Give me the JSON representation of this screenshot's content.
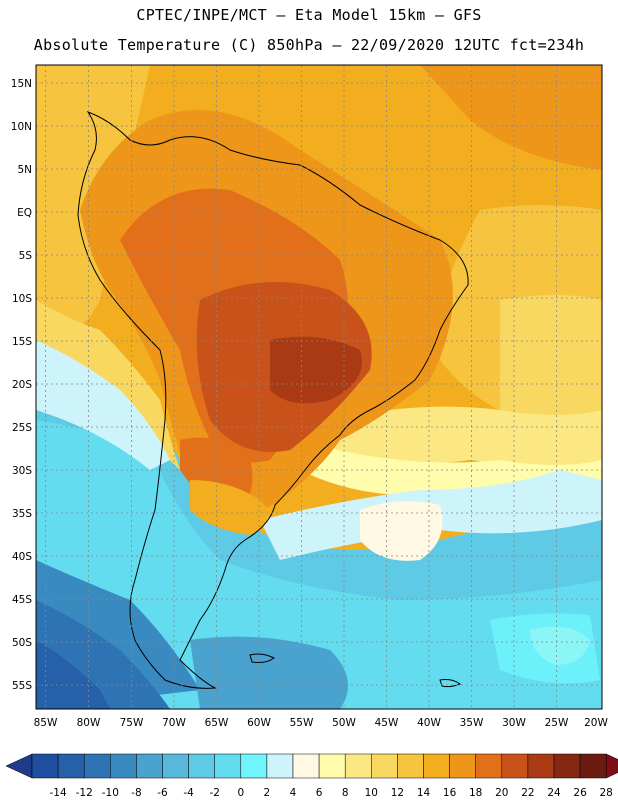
{
  "header": {
    "line1": "CPTEC/INPE/MCT –  Eta Model 15km – GFS",
    "line2": "Absolute Temperature (C) 850hPa – 22/09/2020 12UTC fct=234h"
  },
  "map": {
    "lat_labels": [
      "15N",
      "10N",
      "5N",
      "EQ",
      "5S",
      "10S",
      "15S",
      "20S",
      "25S",
      "30S",
      "35S",
      "40S",
      "45S",
      "50S",
      "55S"
    ],
    "lon_labels": [
      "85W",
      "80W",
      "75W",
      "70W",
      "65W",
      "60W",
      "55W",
      "50W",
      "45W",
      "40W",
      "35W",
      "30W",
      "25W",
      "20W"
    ]
  },
  "colorbar": {
    "ticks": [
      "-14",
      "-12",
      "-10",
      "-8",
      "-6",
      "-4",
      "-2",
      "0",
      "2",
      "4",
      "6",
      "8",
      "10",
      "12",
      "14",
      "16",
      "18",
      "20",
      "22",
      "24",
      "26",
      "28"
    ],
    "colors": [
      "#1f4ea0",
      "#2560a8",
      "#2e74b4",
      "#3a8ac2",
      "#4aa2cf",
      "#58b8dc",
      "#5fcae6",
      "#62dcee",
      "#6ff5fb",
      "#cdf3fb",
      "#fff8e3",
      "#fffcab",
      "#fbe882",
      "#f8d860",
      "#f6c43e",
      "#f2ae1e",
      "#ee961a",
      "#e2701a",
      "#c9521a",
      "#aa3a13",
      "#852712",
      "#6c1b10"
    ],
    "min_color": "#1e3c8a",
    "max_color": "#7a0f1a"
  }
}
